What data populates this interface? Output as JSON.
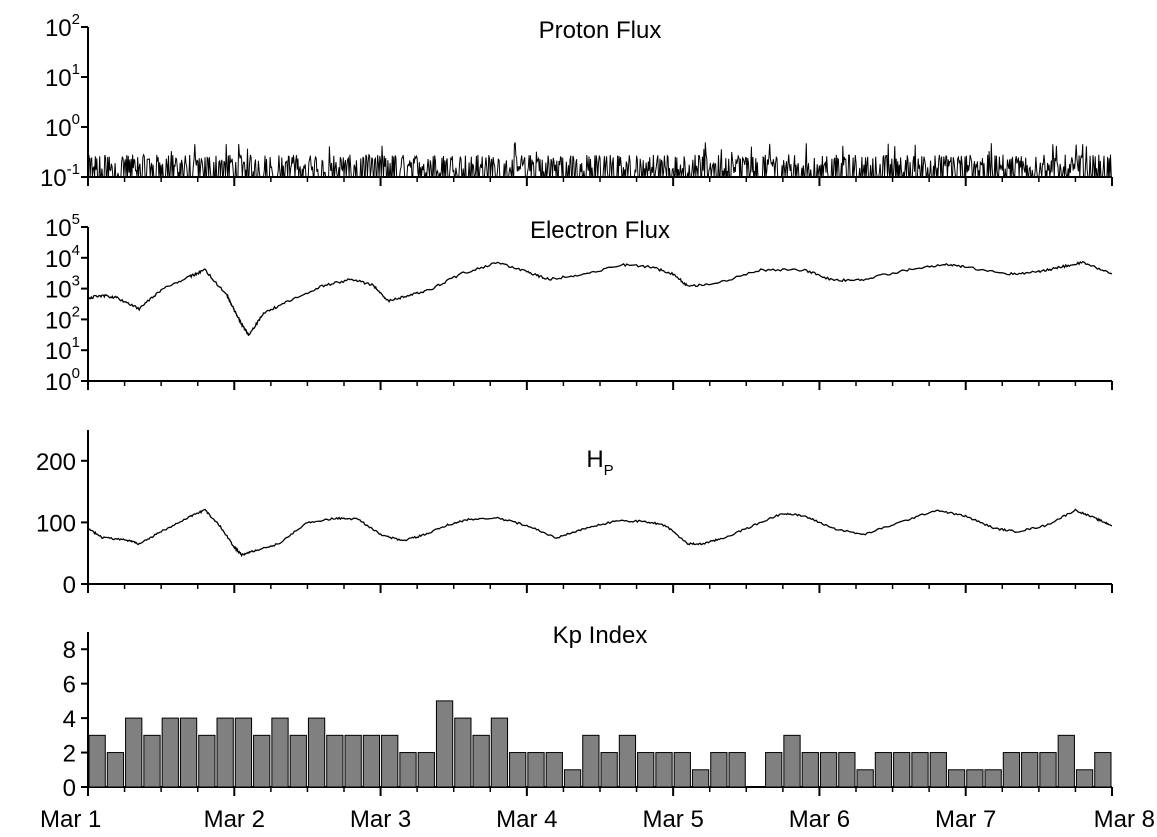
{
  "chart_data": [
    {
      "type": "line",
      "title": "Proton Flux",
      "xlabel": "",
      "ylabel": "",
      "yscale": "log",
      "ylim": [
        0.1,
        100
      ],
      "yticks": [
        {
          "base": "10",
          "exp": "-1",
          "value": 0.1
        },
        {
          "base": "10",
          "exp": "0",
          "value": 1
        },
        {
          "base": "10",
          "exp": "1",
          "value": 10
        },
        {
          "base": "10",
          "exp": "2",
          "value": 100
        }
      ],
      "x": {
        "start": "Mar 1",
        "end": "Mar 8",
        "unit": "day"
      },
      "series": [
        {
          "noise": {
            "baseline": 0.1,
            "typical_peak": [
              0.12,
              0.28
            ],
            "max": 0.5
          }
        }
      ],
      "grid": false
    },
    {
      "type": "line",
      "title": "Electron Flux",
      "xlabel": "",
      "ylabel": "",
      "yscale": "log",
      "ylim": [
        1,
        100000
      ],
      "yticks": [
        {
          "base": "10",
          "exp": "0",
          "value": 1
        },
        {
          "base": "10",
          "exp": "1",
          "value": 10
        },
        {
          "base": "10",
          "exp": "2",
          "value": 100
        },
        {
          "base": "10",
          "exp": "3",
          "value": 1000
        },
        {
          "base": "10",
          "exp": "4",
          "value": 10000
        },
        {
          "base": "10",
          "exp": "5",
          "value": 100000
        }
      ],
      "series": [
        {
          "x": [
            1.0,
            1.1,
            1.2,
            1.35,
            1.5,
            1.7,
            1.8,
            1.95,
            2.0,
            2.05,
            2.1,
            2.2,
            2.35,
            2.6,
            2.8,
            2.95,
            3.05,
            3.2,
            3.35,
            3.55,
            3.8,
            4.0,
            4.15,
            4.4,
            4.65,
            4.85,
            5.0,
            5.1,
            5.3,
            5.6,
            5.9,
            6.1,
            6.3,
            6.6,
            6.85,
            7.0,
            7.3,
            7.5,
            7.65,
            7.8,
            8.0
          ],
          "values": [
            500,
            600,
            500,
            220,
            900,
            2500,
            4000,
            600,
            200,
            70,
            30,
            160,
            350,
            1200,
            2000,
            1300,
            400,
            600,
            1000,
            3000,
            7000,
            3500,
            2000,
            3000,
            6000,
            5000,
            3000,
            1200,
            1500,
            4000,
            4000,
            1800,
            2000,
            4000,
            6000,
            5000,
            3000,
            3500,
            5000,
            7000,
            3000
          ]
        }
      ],
      "grid": false
    },
    {
      "type": "line",
      "title": "H",
      "title_sub": "P",
      "xlabel": "",
      "ylabel": "",
      "ylim": [
        0,
        250
      ],
      "yticks": [
        "0",
        "100",
        "200"
      ],
      "series": [
        {
          "x": [
            1.0,
            1.1,
            1.25,
            1.35,
            1.5,
            1.7,
            1.8,
            1.9,
            2.0,
            2.05,
            2.15,
            2.3,
            2.5,
            2.7,
            2.85,
            3.0,
            3.15,
            3.3,
            3.45,
            3.6,
            3.8,
            4.0,
            4.2,
            4.4,
            4.6,
            4.8,
            4.95,
            5.1,
            5.2,
            5.35,
            5.55,
            5.75,
            5.9,
            6.1,
            6.3,
            6.55,
            6.8,
            7.0,
            7.2,
            7.35,
            7.55,
            7.75,
            7.9,
            8.0
          ],
          "values": [
            90,
            75,
            72,
            65,
            85,
            110,
            120,
            95,
            60,
            47,
            55,
            65,
            100,
            107,
            105,
            80,
            70,
            80,
            95,
            105,
            107,
            95,
            75,
            90,
            102,
            102,
            95,
            65,
            65,
            75,
            95,
            115,
            110,
            90,
            80,
            100,
            120,
            110,
            90,
            85,
            95,
            120,
            105,
            95
          ]
        }
      ],
      "grid": false
    },
    {
      "type": "bar",
      "title": "Kp Index",
      "xlabel": "",
      "ylabel": "",
      "ylim": [
        0,
        9
      ],
      "yticks": [
        "0",
        "2",
        "4",
        "6",
        "8"
      ],
      "xticks": [
        "Mar 1",
        "Mar 2",
        "Mar 3",
        "Mar 4",
        "Mar 5",
        "Mar 6",
        "Mar 7",
        "Mar 8"
      ],
      "bar_hours": 3,
      "values": [
        3,
        2,
        4,
        3,
        4,
        4,
        3,
        4,
        4,
        3,
        4,
        3,
        4,
        3,
        3,
        3,
        3,
        2,
        2,
        5,
        4,
        3,
        4,
        2,
        2,
        2,
        1,
        3,
        2,
        3,
        2,
        2,
        2,
        1,
        2,
        2,
        null,
        2,
        3,
        2,
        2,
        2,
        1,
        2,
        2,
        2,
        2,
        1,
        1,
        1,
        2,
        2,
        2,
        3,
        1,
        2
      ],
      "bar_color": "#808080",
      "grid": false
    }
  ]
}
